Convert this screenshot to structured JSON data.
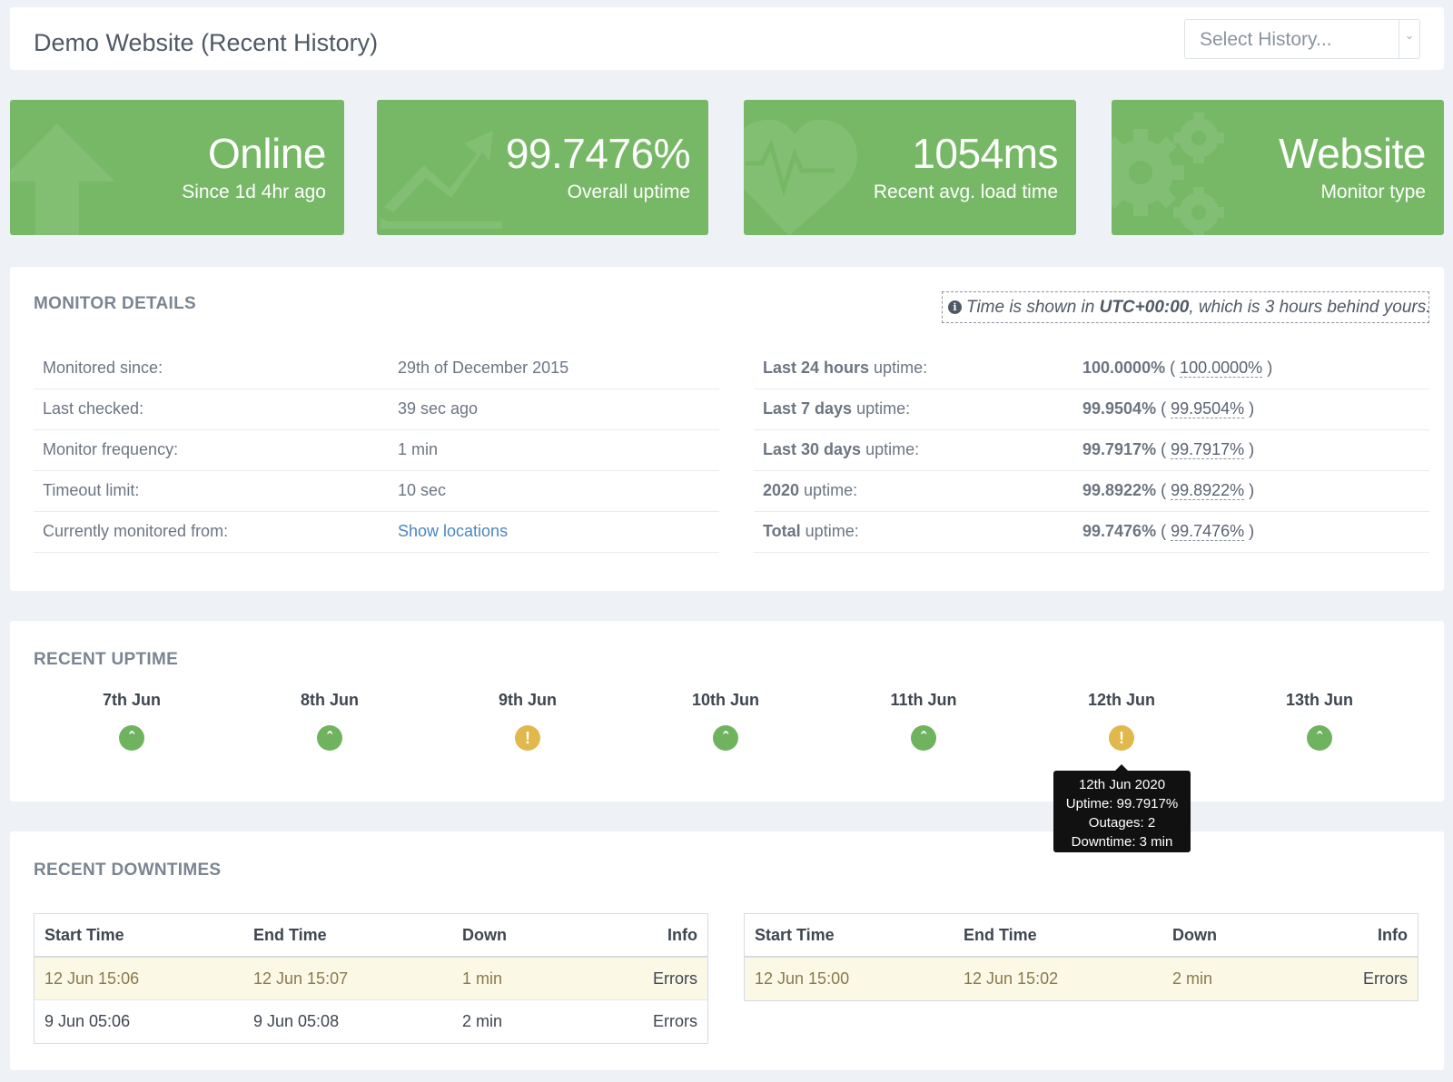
{
  "header": {
    "title": "Demo Website (Recent History)",
    "history_select": "Select History..."
  },
  "tiles": [
    {
      "value": "Online",
      "label": "Since 1d 4hr ago",
      "icon": "arrow-up-icon"
    },
    {
      "value": "99.7476%",
      "label": "Overall uptime",
      "icon": "trending-up-icon"
    },
    {
      "value": "1054ms",
      "label": "Recent avg. load time",
      "icon": "heartbeat-icon"
    },
    {
      "value": "Website",
      "label": "Monitor type",
      "icon": "gears-icon"
    }
  ],
  "details": {
    "title": "MONITOR DETAILS",
    "tz_note_prefix": "Time is shown in ",
    "tz_note_zone": "UTC+00:00",
    "tz_note_suffix": ", which is 3 hours behind yours.",
    "left_rows": [
      {
        "label": "Monitored since:",
        "value": "29th of December 2015"
      },
      {
        "label": "Last checked:",
        "value": "39 sec ago"
      },
      {
        "label": "Monitor frequency:",
        "value": "1 min"
      },
      {
        "label": "Timeout limit:",
        "value": "10 sec"
      },
      {
        "label": "Currently monitored from:",
        "value": "Show locations"
      }
    ],
    "right_rows": [
      {
        "label_bold": "Last 24 hours",
        "label_rest": " uptime:",
        "value": "100.0000%",
        "alt": "100.0000%"
      },
      {
        "label_bold": "Last 7 days",
        "label_rest": " uptime:",
        "value": "99.9504%",
        "alt": "99.9504%"
      },
      {
        "label_bold": "Last 30 days",
        "label_rest": " uptime:",
        "value": "99.7917%",
        "alt": "99.7917%"
      },
      {
        "label_bold": "2020",
        "label_rest": " uptime:",
        "value": "99.8922%",
        "alt": "99.8922%"
      },
      {
        "label_bold": "Total",
        "label_rest": " uptime:",
        "value": "99.7476%",
        "alt": "99.7476%"
      }
    ]
  },
  "uptime": {
    "title": "RECENT UPTIME",
    "days": [
      {
        "date": "7th Jun",
        "status": "up"
      },
      {
        "date": "8th Jun",
        "status": "up"
      },
      {
        "date": "9th Jun",
        "status": "warn"
      },
      {
        "date": "10th Jun",
        "status": "up"
      },
      {
        "date": "11th Jun",
        "status": "up"
      },
      {
        "date": "12th Jun",
        "status": "warn"
      },
      {
        "date": "13th Jun",
        "status": "up"
      }
    ],
    "tooltip": {
      "date": "12th Jun 2020",
      "uptime": "Uptime: 99.7917%",
      "outages": "Outages: 2",
      "downtime": "Downtime: 3 min"
    }
  },
  "downtimes": {
    "title": "RECENT DOWNTIMES",
    "headers": [
      "Start Time",
      "End Time",
      "Down",
      "Info"
    ],
    "left": [
      {
        "start": "12 Jun 15:06",
        "end": "12 Jun 15:07",
        "down": "1 min",
        "info": "Errors"
      },
      {
        "start": "9 Jun 05:06",
        "end": "9 Jun 05:08",
        "down": "2 min",
        "info": "Errors"
      }
    ],
    "right": [
      {
        "start": "12 Jun 15:00",
        "end": "12 Jun 15:02",
        "down": "2 min",
        "info": "Errors"
      }
    ]
  },
  "colors": {
    "tile_green": "#76b865",
    "up_green": "#6fb35f",
    "warn_yellow": "#e0b84b",
    "highlight_row": "#fbf8e6"
  }
}
